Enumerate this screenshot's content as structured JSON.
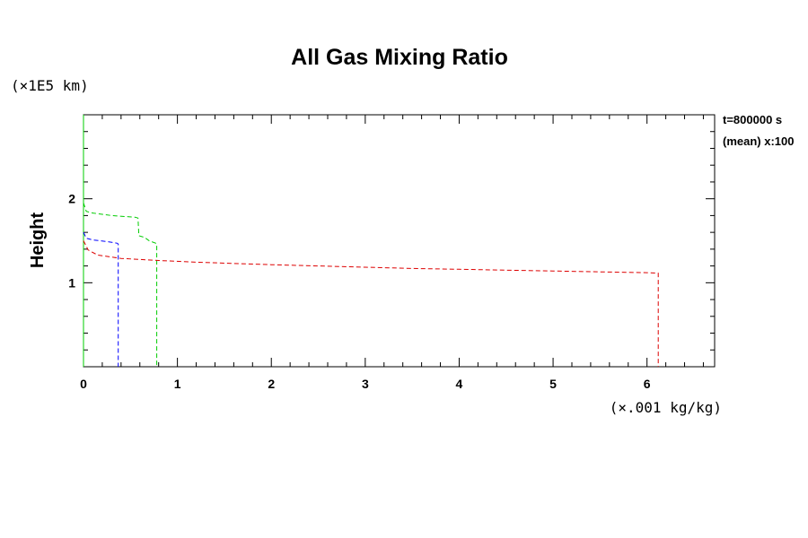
{
  "chart_data": {
    "type": "line",
    "title": "All Gas Mixing Ratio",
    "xlabel_units": "(×.001 kg/kg)",
    "ylabel": "Height",
    "ylabel_units": "(×1E5 km)",
    "annotations": [
      "t=800000 s",
      "(mean) x:100"
    ],
    "xlim": [
      0,
      6.72
    ],
    "ylim": [
      0,
      3.0
    ],
    "x_ticks": [
      "0",
      "1",
      "2",
      "3",
      "4",
      "5",
      "6"
    ],
    "y_ticks": [
      "1",
      "2"
    ],
    "grid": false,
    "series": [
      {
        "color": "#00cc00",
        "points": [
          [
            0.0,
            0.0
          ],
          [
            0.0,
            3.0
          ]
        ]
      },
      {
        "color": "#00cc00",
        "points": [
          [
            0.0,
            1.95
          ],
          [
            0.03,
            1.85
          ],
          [
            0.1,
            1.83
          ],
          [
            0.3,
            1.8
          ],
          [
            0.55,
            1.78
          ],
          [
            0.58,
            1.77
          ],
          [
            0.59,
            1.56
          ],
          [
            0.65,
            1.54
          ],
          [
            0.7,
            1.5
          ],
          [
            0.77,
            1.47
          ],
          [
            0.78,
            1.46
          ],
          [
            0.78,
            0.0
          ]
        ]
      },
      {
        "color": "#0000ff",
        "points": [
          [
            0.0,
            1.6
          ],
          [
            0.03,
            1.53
          ],
          [
            0.1,
            1.51
          ],
          [
            0.25,
            1.49
          ],
          [
            0.36,
            1.47
          ],
          [
            0.37,
            1.46
          ],
          [
            0.37,
            0.0
          ]
        ]
      },
      {
        "color": "#dd0000",
        "points": [
          [
            0.0,
            1.5
          ],
          [
            0.05,
            1.39
          ],
          [
            0.15,
            1.33
          ],
          [
            0.4,
            1.29
          ],
          [
            0.8,
            1.265
          ],
          [
            1.2,
            1.245
          ],
          [
            1.6,
            1.23
          ],
          [
            2.0,
            1.215
          ],
          [
            2.5,
            1.2
          ],
          [
            3.0,
            1.185
          ],
          [
            3.5,
            1.17
          ],
          [
            4.0,
            1.16
          ],
          [
            4.5,
            1.15
          ],
          [
            5.0,
            1.14
          ],
          [
            5.5,
            1.13
          ],
          [
            6.0,
            1.12
          ],
          [
            6.12,
            1.115
          ],
          [
            6.12,
            0.0
          ]
        ]
      }
    ]
  }
}
